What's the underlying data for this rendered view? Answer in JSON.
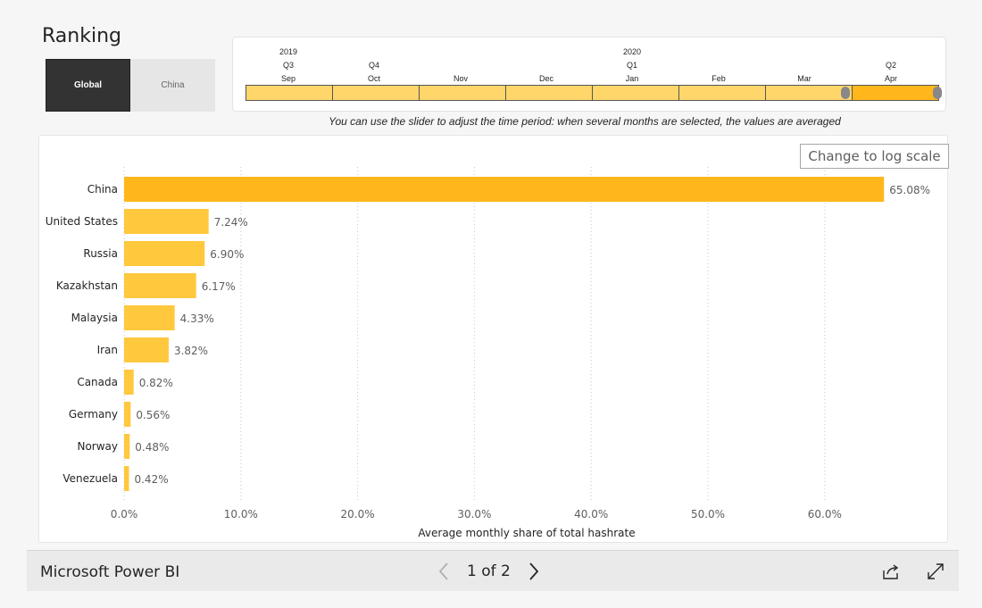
{
  "page": {
    "title": "Ranking"
  },
  "toggle": {
    "options": [
      "Global",
      "China"
    ],
    "selected": "Global"
  },
  "timeline": {
    "years": {
      "first": "2019",
      "second": "2020"
    },
    "quarters": [
      "Q3",
      "Q4",
      "Q1",
      "Q2"
    ],
    "months": [
      "Sep",
      "Oct",
      "Nov",
      "Dec",
      "Jan",
      "Feb",
      "Mar",
      "Apr"
    ],
    "selected_month": "Apr"
  },
  "hint": "You can use the slider to adjust the time period: when several months are selected, the values are averaged",
  "log_button": "Change to log scale",
  "chart_data": {
    "type": "bar",
    "orientation": "horizontal",
    "categories": [
      "China",
      "United States",
      "Russia",
      "Kazakhstan",
      "Malaysia",
      "Iran",
      "Canada",
      "Germany",
      "Norway",
      "Venezuela"
    ],
    "values": [
      65.08,
      7.24,
      6.9,
      6.17,
      4.33,
      3.82,
      0.82,
      0.56,
      0.48,
      0.42
    ],
    "data_labels": [
      "65.08%",
      "7.24%",
      "6.90%",
      "6.17%",
      "4.33%",
      "3.82%",
      "0.82%",
      "0.56%",
      "0.48%",
      "0.42%"
    ],
    "xlabel": "Average monthly share of total hashrate",
    "ylabel": "",
    "xlim": [
      0,
      70
    ],
    "xticks": [
      0,
      10,
      20,
      30,
      40,
      50,
      60
    ],
    "xtick_labels": [
      "0.0%",
      "10.0%",
      "20.0%",
      "30.0%",
      "40.0%",
      "50.0%",
      "60.0%"
    ],
    "grid": "vertical dotted",
    "colors": {
      "highlight": "#ffb71b",
      "bar": "#ffc83d"
    }
  },
  "footer": {
    "brand": "Microsoft Power BI",
    "page_indicator": "1 of 2"
  },
  "icons": {
    "prev": "chevron-left-icon",
    "next": "chevron-right-icon",
    "share": "share-icon",
    "fullscreen": "expand-icon"
  }
}
